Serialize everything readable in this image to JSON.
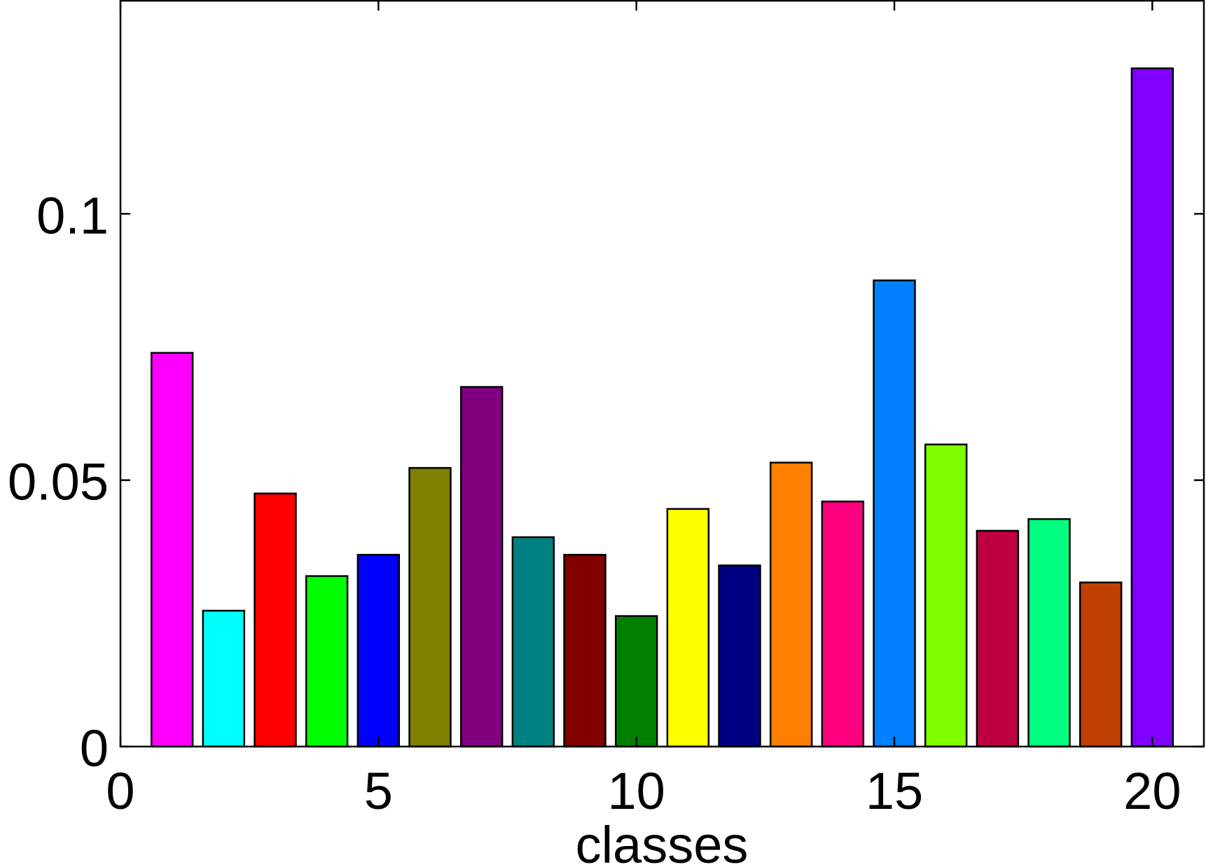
{
  "chart_data": {
    "type": "bar",
    "x": [
      1,
      2,
      3,
      4,
      5,
      6,
      7,
      8,
      9,
      10,
      11,
      12,
      13,
      14,
      15,
      16,
      17,
      18,
      19,
      20
    ],
    "values": [
      0.0739,
      0.0255,
      0.0475,
      0.032,
      0.036,
      0.0523,
      0.0675,
      0.0393,
      0.036,
      0.0245,
      0.0446,
      0.034,
      0.0533,
      0.046,
      0.0875,
      0.0567,
      0.0405,
      0.0427,
      0.0308,
      0.1273
    ],
    "colors": [
      "#ff00ff",
      "#00ffff",
      "#ff0000",
      "#00ff00",
      "#0000ff",
      "#808000",
      "#800080",
      "#008080",
      "#800000",
      "#008000",
      "#ffff00",
      "#000080",
      "#ff8000",
      "#ff0080",
      "#0080ff",
      "#80ff00",
      "#bf0040",
      "#00ff80",
      "#bf4000",
      "#8000ff"
    ],
    "xlabel": "classes",
    "ylabel": "",
    "title": "",
    "xlim": [
      0,
      21
    ],
    "ylim": [
      0,
      0.14
    ],
    "xticks": [
      0,
      5,
      10,
      15,
      20
    ],
    "xtick_labels": [
      "0",
      "5",
      "10",
      "15",
      "20"
    ],
    "yticks": [
      0,
      0.05,
      0.1
    ],
    "ytick_labels": [
      "0",
      "0.05",
      "0.1"
    ],
    "grid": false,
    "legend": "none"
  }
}
